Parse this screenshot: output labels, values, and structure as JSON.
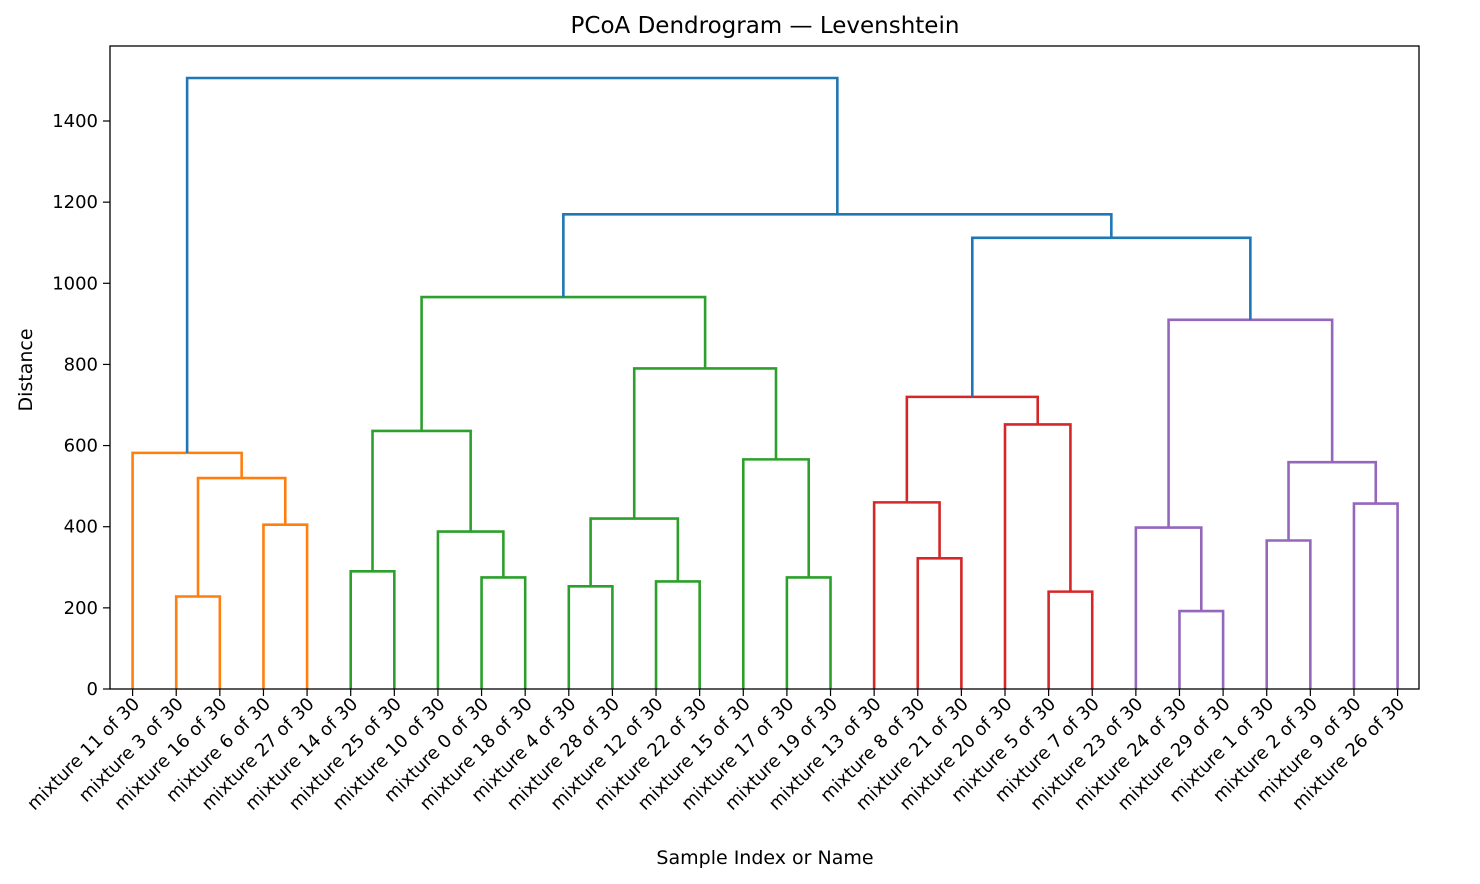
{
  "chart_data": {
    "type": "dendrogram",
    "title": "PCoA Dendrogram — Levenshtein",
    "xlabel": "Sample Index or Name",
    "ylabel": "Distance",
    "ylim": [
      0,
      1580
    ],
    "yticks": [
      0,
      200,
      400,
      600,
      800,
      1000,
      1200,
      1400
    ],
    "leaves": [
      "mixture 11 of 30",
      "mixture 3 of 30",
      "mixture 16 of 30",
      "mixture 6 of 30",
      "mixture 27 of 30",
      "mixture 14 of 30",
      "mixture 25 of 30",
      "mixture 10 of 30",
      "mixture 0 of 30",
      "mixture 18 of 30",
      "mixture 4 of 30",
      "mixture 28 of 30",
      "mixture 12 of 30",
      "mixture 22 of 30",
      "mixture 15 of 30",
      "mixture 17 of 30",
      "mixture 19 of 30",
      "mixture 13 of 30",
      "mixture 8 of 30",
      "mixture 21 of 30",
      "mixture 20 of 30",
      "mixture 5 of 30",
      "mixture 7 of 30",
      "mixture 23 of 30",
      "mixture 24 of 30",
      "mixture 29 of 30",
      "mixture 1 of 30",
      "mixture 2 of 30",
      "mixture 9 of 30",
      "mixture 26 of 30"
    ],
    "colors": {
      "orange": "#ff7f0e",
      "green": "#2ca02c",
      "red": "#d62728",
      "purple": "#9467bd",
      "above": "#1f77b4"
    },
    "merges": [
      {
        "name": "O1",
        "left": 2,
        "right": 3,
        "height": 228,
        "color": "orange"
      },
      {
        "name": "O2",
        "left": 4,
        "right": 5,
        "height": 405,
        "color": "orange"
      },
      {
        "name": "O3",
        "left": "O1",
        "right": "O2",
        "height": 520,
        "color": "orange"
      },
      {
        "name": "O4",
        "left": 1,
        "right": "O3",
        "height": 582,
        "color": "orange"
      },
      {
        "name": "G1",
        "left": 6,
        "right": 7,
        "height": 290,
        "color": "green"
      },
      {
        "name": "G2",
        "left": 9,
        "right": 10,
        "height": 275,
        "color": "green"
      },
      {
        "name": "G3",
        "left": 8,
        "right": "G2",
        "height": 388,
        "color": "green"
      },
      {
        "name": "G4",
        "left": "G1",
        "right": "G3",
        "height": 636,
        "color": "green"
      },
      {
        "name": "G5",
        "left": 11,
        "right": 12,
        "height": 253,
        "color": "green"
      },
      {
        "name": "G6",
        "left": 13,
        "right": 14,
        "height": 265,
        "color": "green"
      },
      {
        "name": "G7",
        "left": "G5",
        "right": "G6",
        "height": 420,
        "color": "green"
      },
      {
        "name": "G8",
        "left": 16,
        "right": 17,
        "height": 275,
        "color": "green"
      },
      {
        "name": "G9",
        "left": 15,
        "right": "G8",
        "height": 566,
        "color": "green"
      },
      {
        "name": "G10",
        "left": "G7",
        "right": "G9",
        "height": 790,
        "color": "green"
      },
      {
        "name": "G11",
        "left": "G4",
        "right": "G10",
        "height": 966,
        "color": "green"
      },
      {
        "name": "R1",
        "left": 19,
        "right": 20,
        "height": 322,
        "color": "red"
      },
      {
        "name": "R2",
        "left": 18,
        "right": "R1",
        "height": 460,
        "color": "red"
      },
      {
        "name": "R3",
        "left": 22,
        "right": 23,
        "height": 240,
        "color": "red"
      },
      {
        "name": "R4",
        "left": 21,
        "right": "R3",
        "height": 652,
        "color": "red"
      },
      {
        "name": "R5",
        "left": "R2",
        "right": "R4",
        "height": 720,
        "color": "red"
      },
      {
        "name": "P1",
        "left": 25,
        "right": 26,
        "height": 192,
        "color": "purple"
      },
      {
        "name": "P2",
        "left": 24,
        "right": "P1",
        "height": 398,
        "color": "purple"
      },
      {
        "name": "P3",
        "left": 27,
        "right": 28,
        "height": 366,
        "color": "purple"
      },
      {
        "name": "P4",
        "left": 29,
        "right": 30,
        "height": 457,
        "color": "purple"
      },
      {
        "name": "P5",
        "left": "P3",
        "right": "P4",
        "height": 559,
        "color": "purple"
      },
      {
        "name": "P6",
        "left": "P2",
        "right": "P5",
        "height": 910,
        "color": "purple"
      },
      {
        "name": "B1",
        "left": "R5",
        "right": "P6",
        "height": 1112,
        "color": "above"
      },
      {
        "name": "B2",
        "left": "G11",
        "right": "B1",
        "height": 1170,
        "color": "above"
      },
      {
        "name": "B3",
        "left": "O4",
        "right": "B2",
        "height": 1506,
        "color": "above"
      }
    ]
  }
}
